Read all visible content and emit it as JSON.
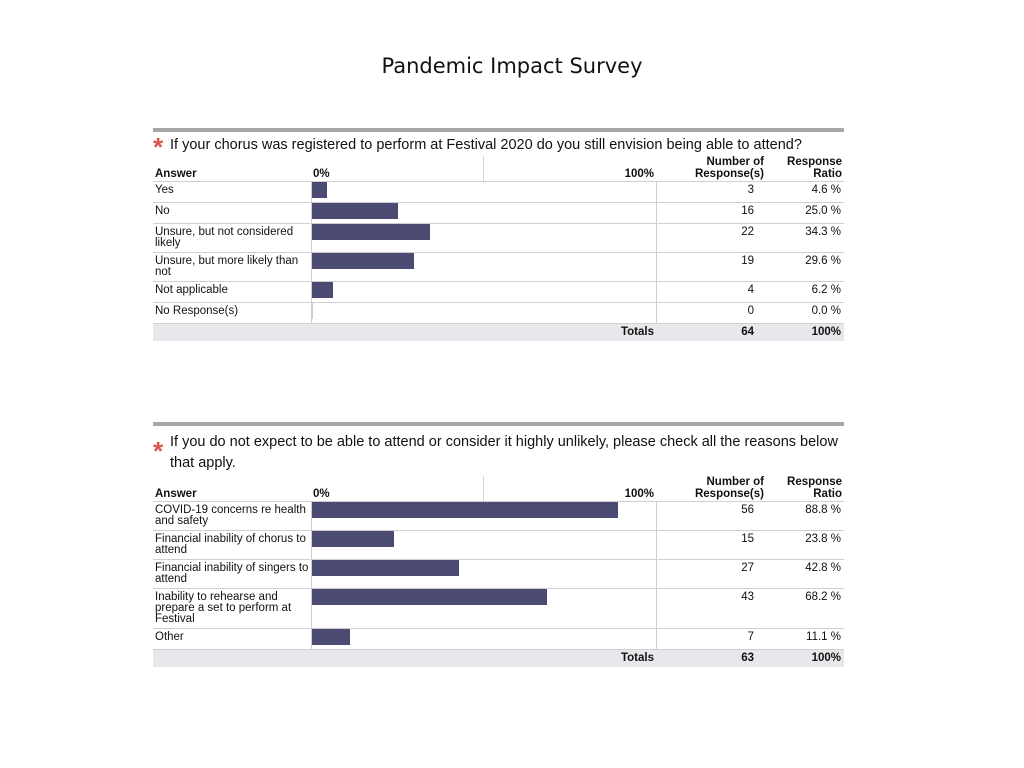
{
  "page_title": "Pandemic Impact Survey",
  "colors": {
    "bar": "#4a4a72",
    "asterisk": "#e0544b",
    "totals_bg": "#e8e8ec"
  },
  "chart_data": [
    {
      "type": "bar",
      "title": "If your chorus was registered to perform at Festival 2020 do you still envision being able to attend?",
      "header": {
        "answer": "Answer",
        "zero": "0%",
        "hundred": "100%",
        "count_line1": "Number of",
        "count_line2": "Response(s)",
        "ratio_line1": "Response",
        "ratio_line2": "Ratio"
      },
      "categories": [
        "Yes",
        "No",
        "Unsure, but not considered likely",
        "Unsure, but more likely than not",
        "Not applicable",
        "No Response(s)"
      ],
      "counts": [
        "3",
        "16",
        "22",
        "19",
        "4",
        "0"
      ],
      "ratio_labels": [
        "4.6 %",
        "25.0 %",
        "34.3 %",
        "29.6 %",
        "6.2 %",
        "0.0 %"
      ],
      "values": [
        4.6,
        25.0,
        34.3,
        29.6,
        6.2,
        0.0
      ],
      "xlim": [
        0,
        100
      ],
      "totals": {
        "label": "Totals",
        "count": "64",
        "ratio": "100%"
      }
    },
    {
      "type": "bar",
      "title": "If you do not expect to be able to attend or consider it highly unlikely, please check all the reasons below that apply.",
      "header": {
        "answer": "Answer",
        "zero": "0%",
        "hundred": "100%",
        "count_line1": "Number of",
        "count_line2": "Response(s)",
        "ratio_line1": "Response",
        "ratio_line2": "Ratio"
      },
      "categories": [
        "COVID-19 concerns re health and safety",
        "Financial inability of chorus to attend",
        "Financial inability of singers to attend",
        "Inability to rehearse and prepare a set to perform at Festival",
        "Other"
      ],
      "counts": [
        "56",
        "15",
        "27",
        "43",
        "7"
      ],
      "ratio_labels": [
        "88.8 %",
        "23.8 %",
        "42.8 %",
        "68.2 %",
        "11.1 %"
      ],
      "values": [
        88.8,
        23.8,
        42.8,
        68.2,
        11.1
      ],
      "xlim": [
        0,
        100
      ],
      "totals": {
        "label": "Totals",
        "count": "63",
        "ratio": "100%"
      }
    }
  ]
}
